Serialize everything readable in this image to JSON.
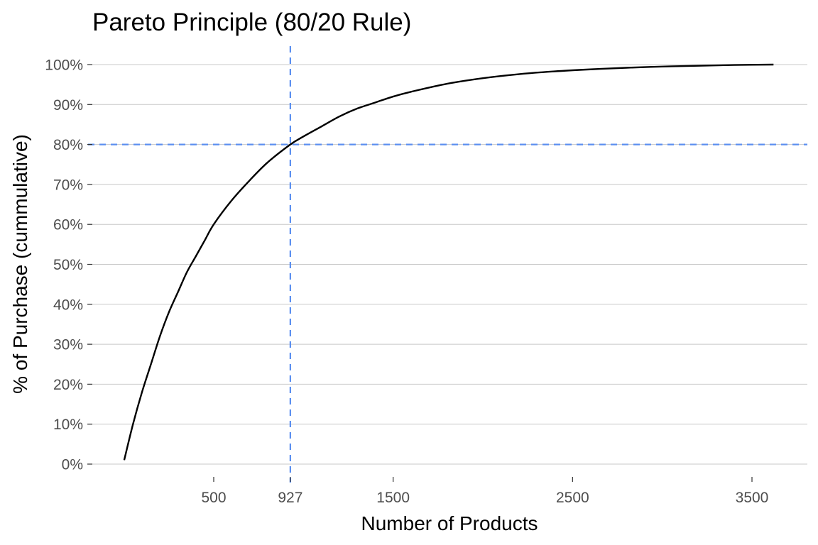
{
  "chart_data": {
    "type": "line",
    "title": "Pareto Principle (80/20 Rule)",
    "xlabel": "Number of Products",
    "ylabel": "% of Purchase (cummulative)",
    "xlim": [
      0,
      3800
    ],
    "ylim": [
      0,
      1
    ],
    "x_ticks": [
      500,
      927,
      1500,
      2500,
      3500
    ],
    "x_tick_labels": [
      "500",
      "927",
      "1500",
      "2500",
      "3500"
    ],
    "y_ticks": [
      0,
      0.1,
      0.2,
      0.3,
      0.4,
      0.5,
      0.6,
      0.7,
      0.8,
      0.9,
      1.0
    ],
    "y_tick_labels": [
      "0%",
      "10%",
      "20%",
      "30%",
      "40%",
      "50%",
      "60%",
      "70%",
      "80%",
      "90%",
      "100%"
    ],
    "grid": "horizontal major only",
    "reference_lines": {
      "vertical_x": 927,
      "horizontal_y": 0.8,
      "color": "#5b8ff0",
      "style": "dashed"
    },
    "series": [
      {
        "color": "#000000",
        "x": [
          1,
          50,
          100,
          150,
          200,
          250,
          300,
          350,
          400,
          450,
          500,
          600,
          700,
          800,
          927,
          1000,
          1100,
          1200,
          1300,
          1400,
          1500,
          1600,
          1800,
          2000,
          2200,
          2400,
          2600,
          2800,
          3000,
          3200,
          3400,
          3620
        ],
        "y": [
          0.01,
          0.1,
          0.18,
          0.25,
          0.32,
          0.38,
          0.43,
          0.48,
          0.52,
          0.56,
          0.6,
          0.66,
          0.71,
          0.755,
          0.8,
          0.82,
          0.845,
          0.87,
          0.89,
          0.905,
          0.92,
          0.932,
          0.952,
          0.966,
          0.976,
          0.983,
          0.988,
          0.992,
          0.995,
          0.997,
          0.999,
          1.0
        ]
      }
    ]
  }
}
